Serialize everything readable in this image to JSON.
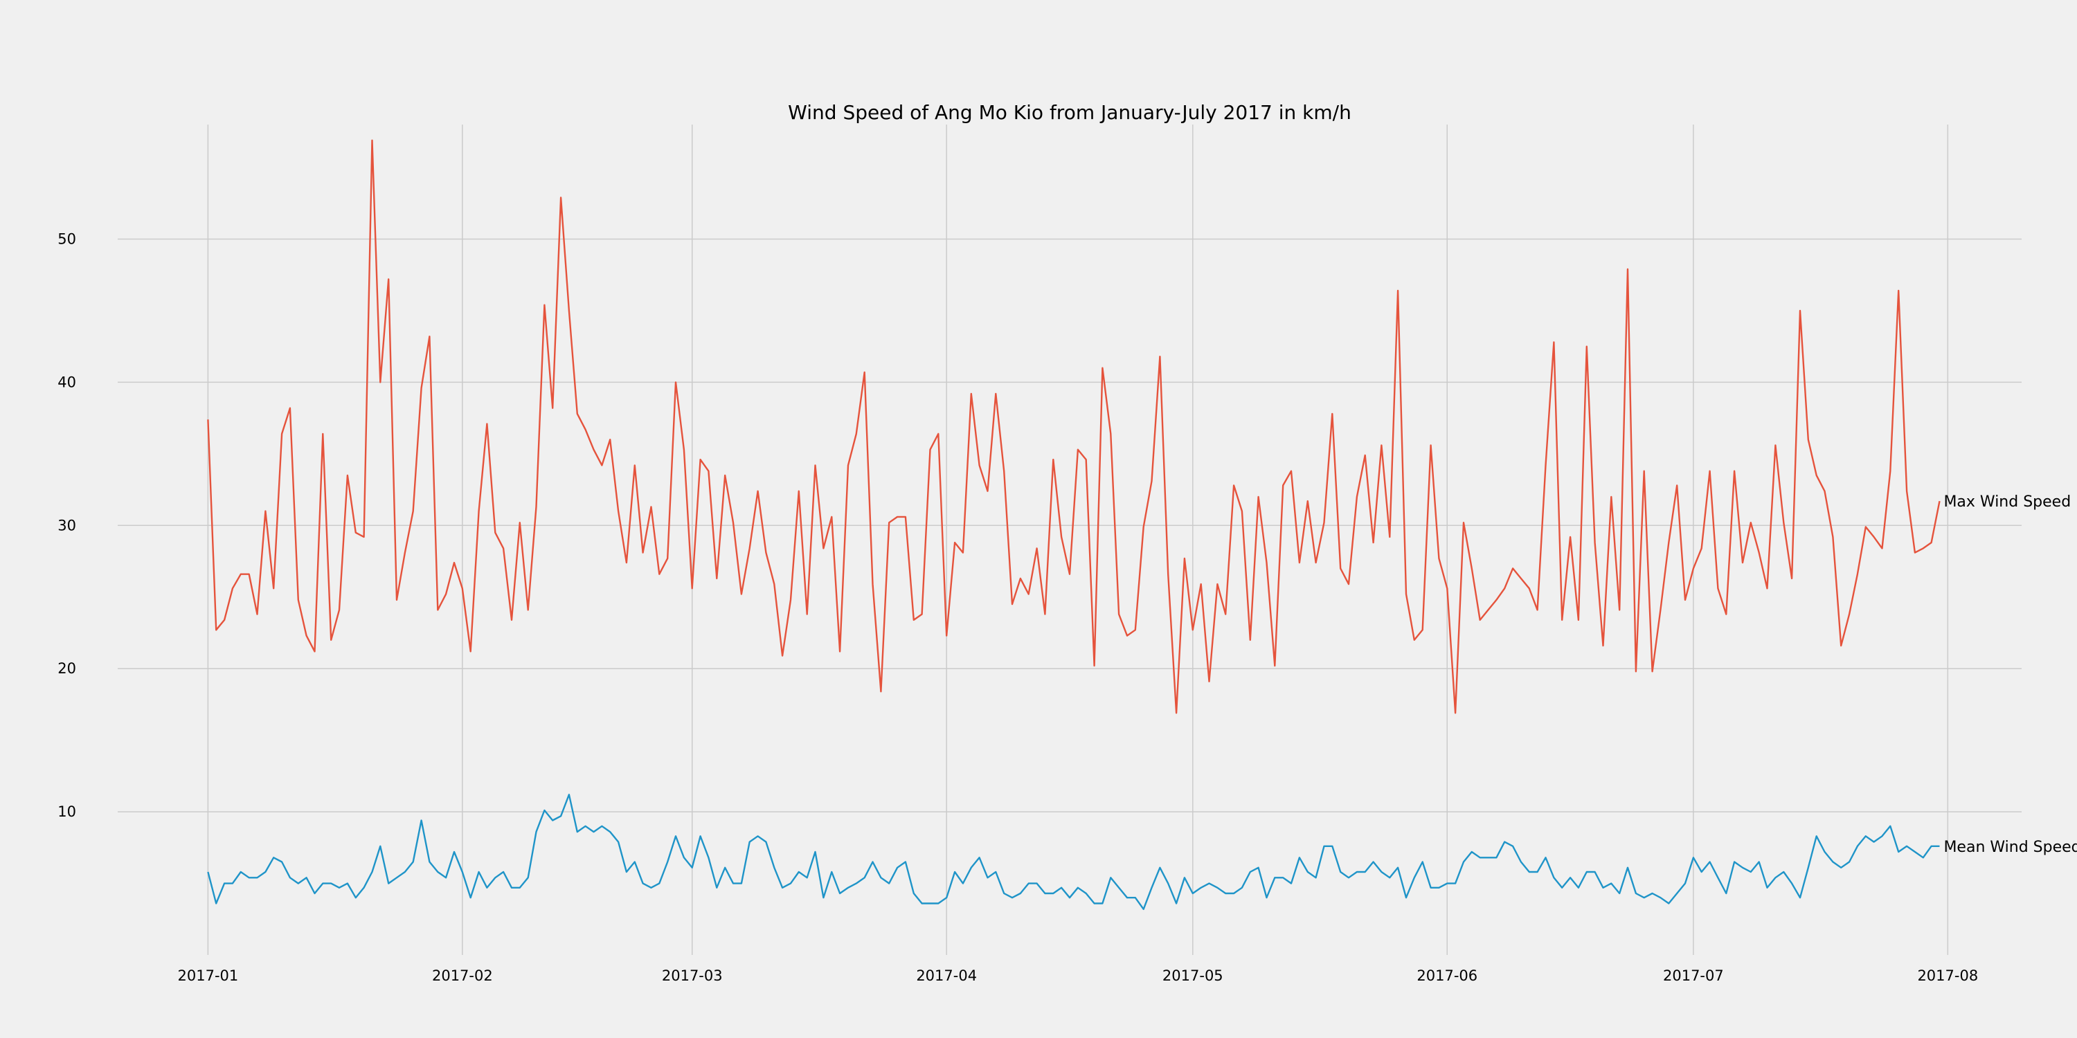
{
  "chart_data": {
    "type": "line",
    "title": "Wind Speed of Ang Mo Kio from January-July 2017 in km/h",
    "xlabel": "",
    "ylabel": "",
    "x_start": "2017-01-01",
    "x_end": "2017-07-31",
    "xlim": [
      "2016-12-21",
      "2017-08-10"
    ],
    "ylim": [
      0,
      58
    ],
    "grid": true,
    "x_ticks": [
      "2017-01",
      "2017-02",
      "2017-03",
      "2017-04",
      "2017-05",
      "2017-06",
      "2017-07",
      "2017-08"
    ],
    "y_ticks": [
      10,
      20,
      30,
      40,
      50
    ],
    "series": [
      {
        "name": "Max Wind Speed",
        "color": "#e5533c",
        "values": [
          37.4,
          22.7,
          23.4,
          25.6,
          26.6,
          26.6,
          23.8,
          31.0,
          25.6,
          36.4,
          38.2,
          24.8,
          22.3,
          21.2,
          36.4,
          22.0,
          24.1,
          33.5,
          29.5,
          29.2,
          56.9,
          40.0,
          47.2,
          24.8,
          28.1,
          31.0,
          39.6,
          43.2,
          24.1,
          25.2,
          27.4,
          25.6,
          21.2,
          31.0,
          37.1,
          29.5,
          28.4,
          23.4,
          30.2,
          24.1,
          31.3,
          45.4,
          38.2,
          52.9,
          45.0,
          37.8,
          36.7,
          35.3,
          34.2,
          36.0,
          31.0,
          27.4,
          34.2,
          28.1,
          31.3,
          26.6,
          27.7,
          40.0,
          35.3,
          25.6,
          34.6,
          33.8,
          26.3,
          33.5,
          30.2,
          25.2,
          28.4,
          32.4,
          28.1,
          25.9,
          20.9,
          24.8,
          32.4,
          23.8,
          34.2,
          28.4,
          30.6,
          21.2,
          34.2,
          36.4,
          40.7,
          25.9,
          18.4,
          30.2,
          30.6,
          30.6,
          23.4,
          23.8,
          35.3,
          36.4,
          22.3,
          28.8,
          28.1,
          39.2,
          34.2,
          32.4,
          39.2,
          33.8,
          24.5,
          26.3,
          25.2,
          28.4,
          23.8,
          34.6,
          29.2,
          26.6,
          35.3,
          34.6,
          20.2,
          41.0,
          36.4,
          23.8,
          22.3,
          22.7,
          29.9,
          33.1,
          41.8,
          26.6,
          16.9,
          27.7,
          22.7,
          25.9,
          19.1,
          25.9,
          23.8,
          32.8,
          31.0,
          22.0,
          32.0,
          27.4,
          20.2,
          32.8,
          33.8,
          27.4,
          31.7,
          27.4,
          30.2,
          37.8,
          27.0,
          25.9,
          32.0,
          34.9,
          28.8,
          35.6,
          29.2,
          46.4,
          25.2,
          22.0,
          22.7,
          35.6,
          27.7,
          25.6,
          16.9,
          30.2,
          27.0,
          23.4,
          24.1,
          24.8,
          25.6,
          27.0,
          26.3,
          25.6,
          24.1,
          34.2,
          42.8,
          23.4,
          29.2,
          23.4,
          42.5,
          28.8,
          21.6,
          32.0,
          24.1,
          47.9,
          19.8,
          33.8,
          19.8,
          24.1,
          28.8,
          32.8,
          24.8,
          27.0,
          28.4,
          33.8,
          25.6,
          23.8,
          33.8,
          27.4,
          30.2,
          28.1,
          25.6,
          35.6,
          30.2,
          26.3,
          45.0,
          36.0,
          33.5,
          32.4,
          29.2,
          21.6,
          23.8,
          26.6,
          29.9,
          29.2,
          28.4,
          33.8,
          46.4,
          32.4,
          28.1,
          28.4,
          28.8,
          31.7
        ],
        "end_label": "Max Wind Speed"
      },
      {
        "name": "Mean Wind Speed",
        "color": "#1f94c8",
        "values": [
          5.8,
          3.6,
          5.0,
          5.0,
          5.8,
          5.4,
          5.4,
          5.8,
          6.8,
          6.5,
          5.4,
          5.0,
          5.4,
          4.3,
          5.0,
          5.0,
          4.7,
          5.0,
          4.0,
          4.7,
          5.8,
          7.6,
          5.0,
          5.4,
          5.8,
          6.5,
          9.4,
          6.5,
          5.8,
          5.4,
          7.2,
          5.8,
          4.0,
          5.8,
          4.7,
          5.4,
          5.8,
          4.7,
          4.7,
          5.4,
          8.6,
          10.1,
          9.4,
          9.7,
          11.2,
          8.6,
          9.0,
          8.6,
          9.0,
          8.6,
          7.9,
          5.8,
          6.5,
          5.0,
          4.7,
          5.0,
          6.5,
          8.3,
          6.8,
          6.1,
          8.3,
          6.8,
          4.7,
          6.1,
          5.0,
          5.0,
          7.9,
          8.3,
          7.9,
          6.1,
          4.7,
          5.0,
          5.8,
          5.4,
          7.2,
          4.0,
          5.8,
          4.3,
          4.7,
          5.0,
          5.4,
          6.5,
          5.4,
          5.0,
          6.1,
          6.5,
          4.3,
          3.6,
          3.6,
          3.6,
          4.0,
          5.8,
          5.0,
          6.1,
          6.8,
          5.4,
          5.8,
          4.3,
          4.0,
          4.3,
          5.0,
          5.0,
          4.3,
          4.3,
          4.7,
          4.0,
          4.7,
          4.3,
          3.6,
          3.6,
          5.4,
          4.7,
          4.0,
          4.0,
          3.2,
          4.7,
          6.1,
          5.0,
          3.6,
          5.4,
          4.3,
          4.7,
          5.0,
          4.7,
          4.3,
          4.3,
          4.7,
          5.8,
          6.1,
          4.0,
          5.4,
          5.4,
          5.0,
          6.8,
          5.8,
          5.4,
          7.6,
          7.6,
          5.8,
          5.4,
          5.8,
          5.8,
          6.5,
          5.8,
          5.4,
          6.1,
          4.0,
          5.4,
          6.5,
          4.7,
          4.7,
          5.0,
          5.0,
          6.5,
          7.2,
          6.8,
          6.8,
          6.8,
          7.9,
          7.6,
          6.5,
          5.8,
          5.8,
          6.8,
          5.4,
          4.7,
          5.4,
          4.7,
          5.8,
          5.8,
          4.7,
          5.0,
          4.3,
          6.1,
          4.3,
          4.0,
          4.3,
          4.0,
          3.6,
          4.3,
          5.0,
          6.8,
          5.8,
          6.5,
          5.4,
          4.3,
          6.5,
          6.1,
          5.8,
          6.5,
          4.7,
          5.4,
          5.8,
          5.0,
          4.0,
          6.1,
          8.3,
          7.2,
          6.5,
          6.1,
          6.5,
          7.6,
          8.3,
          7.9,
          8.3,
          9.0,
          7.2,
          7.6,
          7.2,
          6.8,
          7.6,
          7.6
        ],
        "end_label": "Mean Wind Speed"
      }
    ]
  }
}
